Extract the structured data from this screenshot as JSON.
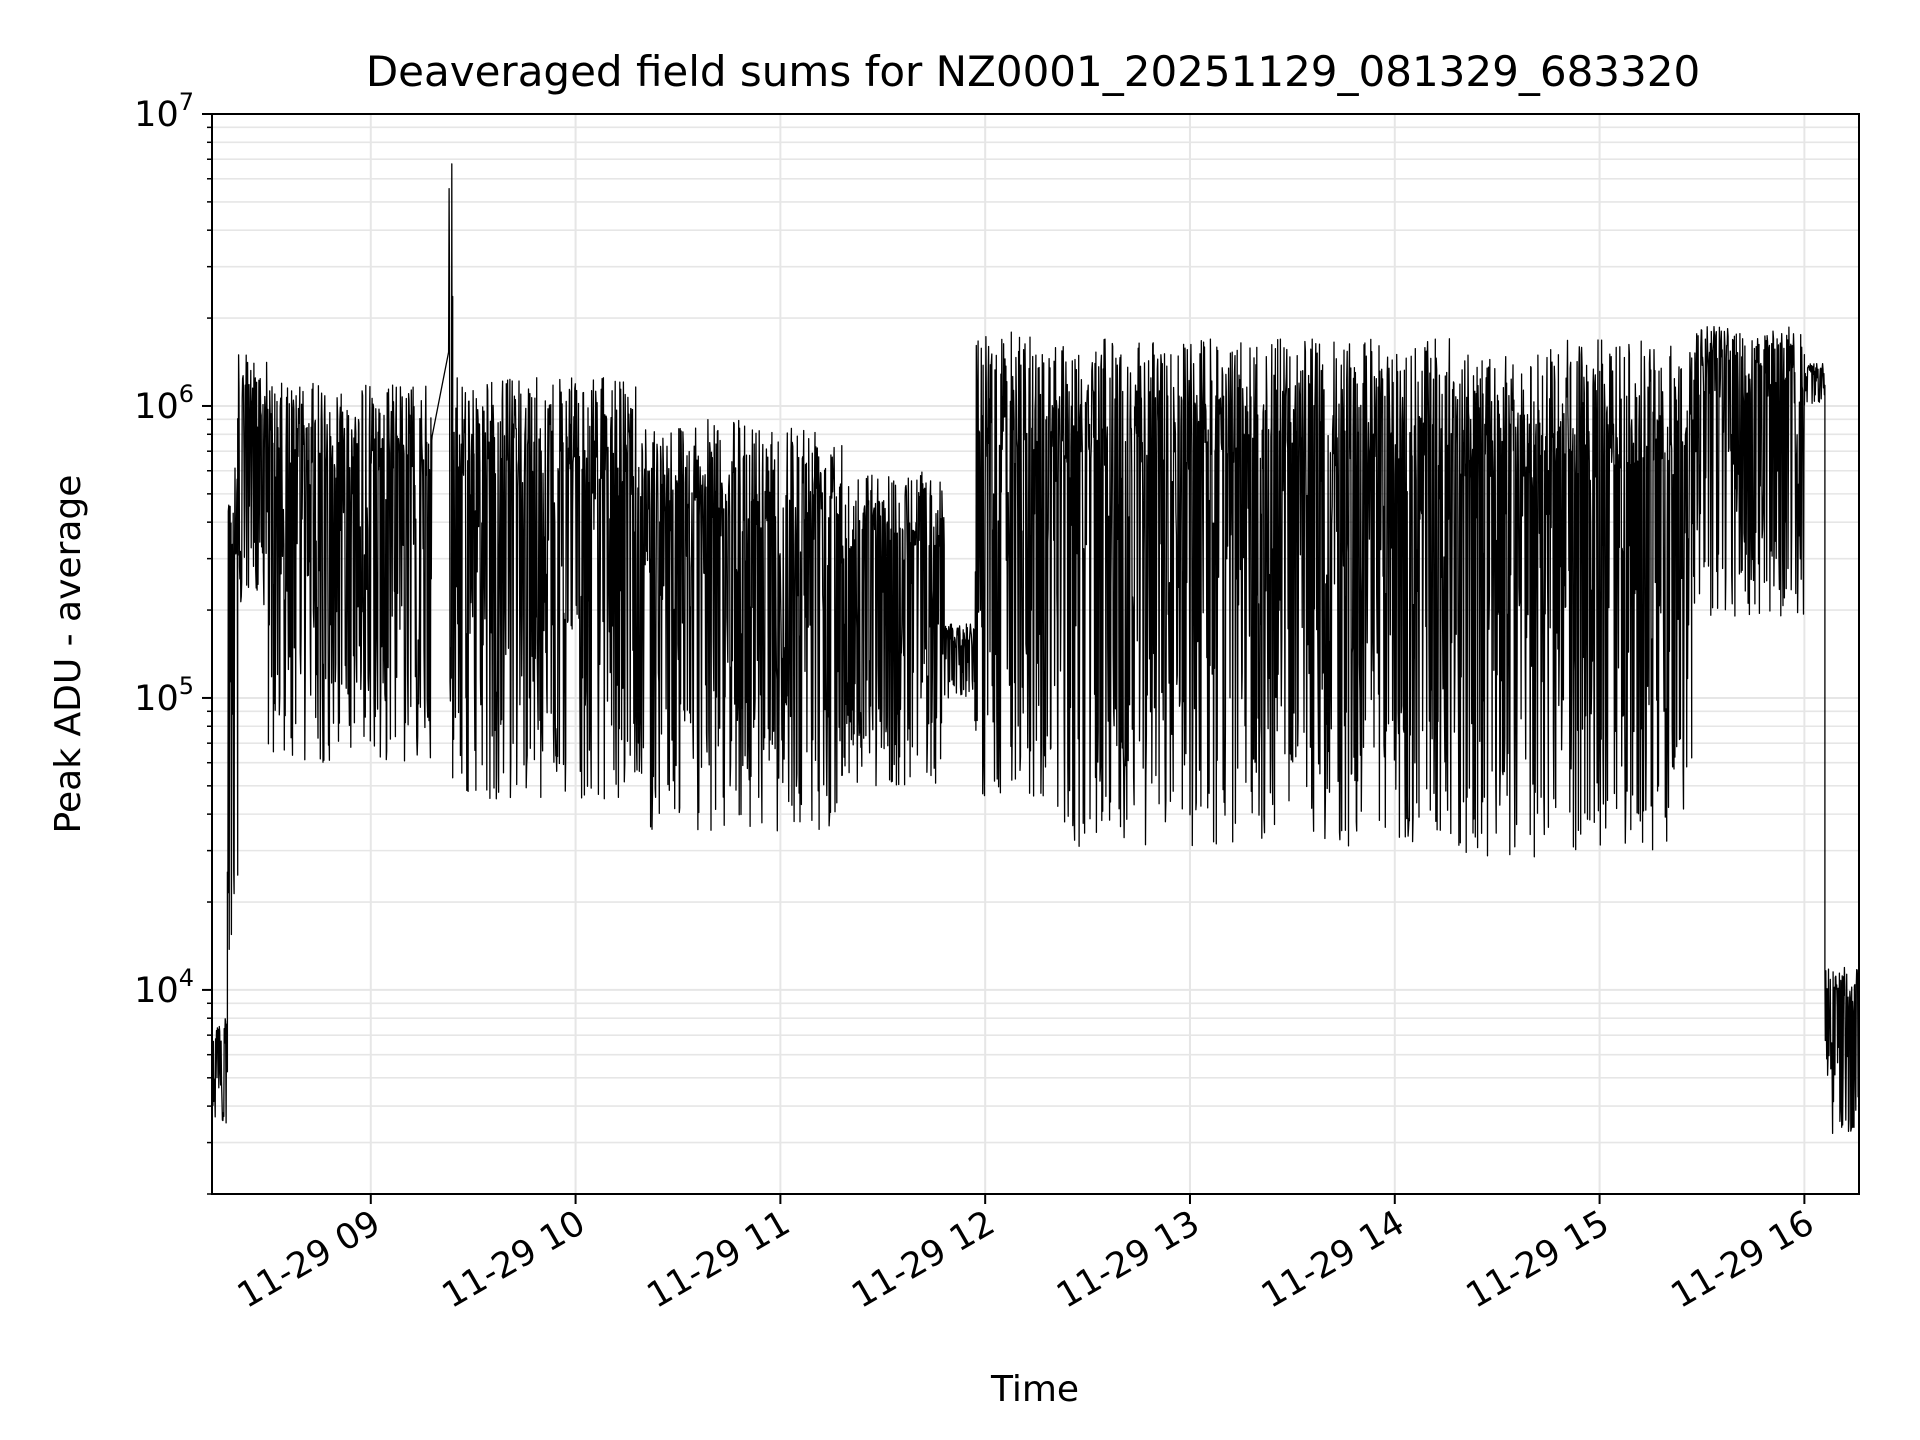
{
  "chart_data": {
    "type": "line",
    "title": "Deaveraged field sums for NZ0001_20251129_081329_683320",
    "xlabel": "Time",
    "ylabel": "Peak ADU - average",
    "yscale": "log",
    "ylim": [
      2000,
      10000000
    ],
    "xlim_hours": [
      8.2247,
      16.2667
    ],
    "grid": true,
    "colors": {
      "line": "#000000",
      "grid": "#e6e6e6",
      "axes": "#000000"
    },
    "x_ticks": [
      {
        "value": 9,
        "label": "11-29 09"
      },
      {
        "value": 10,
        "label": "11-29 10"
      },
      {
        "value": 11,
        "label": "11-29 11"
      },
      {
        "value": 12,
        "label": "11-29 12"
      },
      {
        "value": 13,
        "label": "11-29 13"
      },
      {
        "value": 14,
        "label": "11-29 14"
      },
      {
        "value": 15,
        "label": "11-29 15"
      },
      {
        "value": 16,
        "label": "11-29 16"
      }
    ],
    "y_ticks": [
      {
        "value": 10000,
        "base": "10",
        "exp": "4"
      },
      {
        "value": 100000,
        "base": "10",
        "exp": "5"
      },
      {
        "value": 1000000,
        "base": "10",
        "exp": "6"
      },
      {
        "value": 10000000,
        "base": "10",
        "exp": "7"
      }
    ],
    "series": [
      {
        "name": "Deaveraged field sums",
        "envelope_note": "per-segment approximate max/min envelope of the dense signal, hour of day",
        "segments": [
          {
            "x": [
              8.2247,
              8.3
            ],
            "max": 8000,
            "min": 3500
          },
          {
            "x": [
              8.3,
              8.35
            ],
            "max": 800000,
            "min": 10000
          },
          {
            "x": [
              8.35,
              8.5
            ],
            "max": 1500000,
            "min": 200000
          },
          {
            "x": [
              8.5,
              9.3
            ],
            "max": 1200000,
            "min": 60000
          },
          {
            "x": [
              9.38,
              9.4
            ],
            "max": 7400000,
            "min": 60000
          },
          {
            "x": [
              9.4,
              10.3
            ],
            "max": 1250000,
            "min": 45000
          },
          {
            "x": [
              10.3,
              11.3
            ],
            "max": 900000,
            "min": 35000
          },
          {
            "x": [
              11.3,
              11.8
            ],
            "max": 600000,
            "min": 50000
          },
          {
            "x": [
              11.8,
              11.95
            ],
            "max": 180000,
            "min": 100000
          },
          {
            "x": [
              11.95,
              12.35
            ],
            "max": 1800000,
            "min": 45000
          },
          {
            "x": [
              12.35,
              14.3
            ],
            "max": 1700000,
            "min": 31000
          },
          {
            "x": [
              14.3,
              14.75
            ],
            "max": 1500000,
            "min": 27000
          },
          {
            "x": [
              14.75,
              15.45
            ],
            "max": 1700000,
            "min": 30000
          },
          {
            "x": [
              15.45,
              16.0
            ],
            "max": 1900000,
            "min": 190000
          },
          {
            "x": [
              16.0,
              16.1
            ],
            "max": 1400000,
            "min": 1000000
          },
          {
            "x": [
              16.1,
              16.2667
            ],
            "max": 12000,
            "min": 3200
          }
        ]
      }
    ]
  }
}
